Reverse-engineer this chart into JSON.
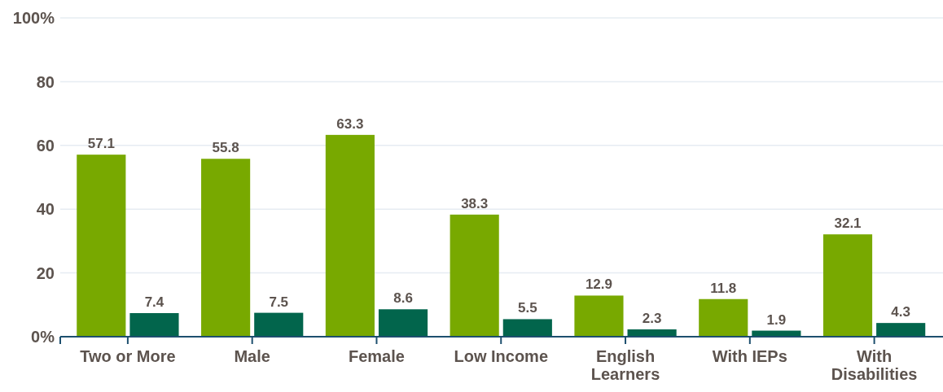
{
  "chart_data": {
    "type": "bar",
    "categories": [
      "Two or More",
      "Male",
      "Female",
      "Low Income",
      "English Learners",
      "With IEPs",
      "With Disabilities"
    ],
    "series": [
      {
        "color": "#78a900",
        "values": [
          57.1,
          55.8,
          63.3,
          38.3,
          12.9,
          11.8,
          32.1
        ]
      },
      {
        "color": "#02654c",
        "values": [
          7.4,
          7.5,
          8.6,
          5.5,
          2.3,
          1.9,
          4.3
        ]
      }
    ],
    "ylim": [
      0,
      100
    ],
    "yticks": [
      {
        "value": 0,
        "label": "0%"
      },
      20,
      40,
      60,
      80,
      {
        "value": 100,
        "label": "100%"
      }
    ],
    "grid": "y",
    "data_labels": true
  }
}
